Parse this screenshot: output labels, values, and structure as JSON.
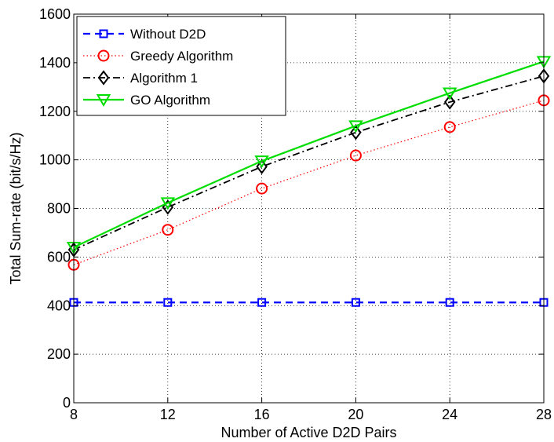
{
  "chart_data": {
    "type": "line",
    "title": "",
    "xlabel": "Number of Active D2D Pairs",
    "ylabel": "Total Sum-rate (bit/s/Hz)",
    "xlim": [
      8,
      28
    ],
    "ylim": [
      0,
      1600
    ],
    "xticks": [
      8,
      12,
      16,
      20,
      24,
      28
    ],
    "yticks": [
      0,
      200,
      400,
      600,
      800,
      1000,
      1200,
      1400,
      1600
    ],
    "grid": true,
    "legend_position": "top-left",
    "x": [
      8,
      12,
      16,
      20,
      24,
      28
    ],
    "series": [
      {
        "name": "Without D2D",
        "values": [
          413,
          413,
          413,
          413,
          413,
          413
        ],
        "color": "#0000ff",
        "linestyle": "dashed",
        "marker": "square"
      },
      {
        "name": "Greedy Algorithm",
        "values": [
          568,
          712,
          882,
          1018,
          1135,
          1245
        ],
        "color": "#ff0000",
        "linestyle": "dotted",
        "marker": "circle"
      },
      {
        "name": "Algorithm 1",
        "values": [
          630,
          805,
          972,
          1113,
          1238,
          1345
        ],
        "color": "#000000",
        "linestyle": "dashdot",
        "marker": "diamond"
      },
      {
        "name": "GO Algorithm",
        "values": [
          640,
          823,
          995,
          1140,
          1275,
          1405
        ],
        "color": "#00dd00",
        "linestyle": "solid",
        "marker": "triangle-down"
      }
    ]
  }
}
